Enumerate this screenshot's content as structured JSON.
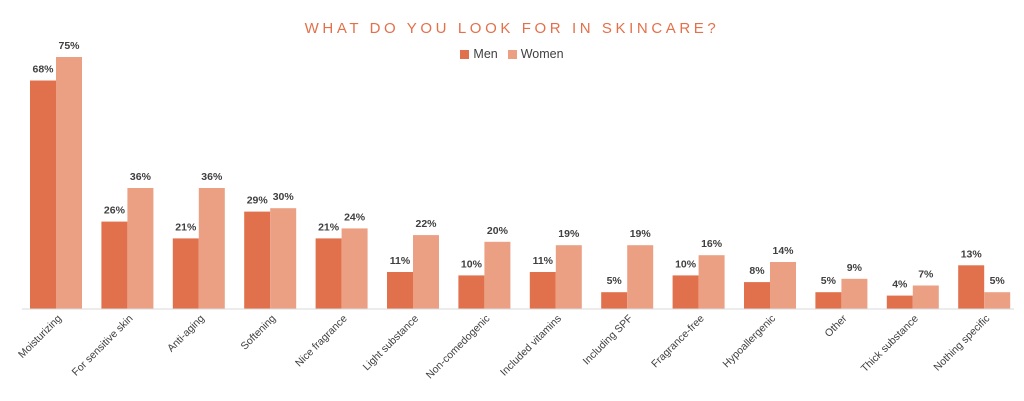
{
  "chart_data": {
    "type": "bar",
    "title": "WHAT DO YOU LOOK FOR IN SKINCARE?",
    "xlabel": "",
    "ylabel": "",
    "ylim": [
      0,
      80
    ],
    "grid": false,
    "legend_position": "top-center",
    "categories": [
      "Moisturizing",
      "For sensitive skin",
      "Anti-aging",
      "Softening",
      "Nice fragrance",
      "Light substance",
      "Non-comedogenic",
      "Included vitamins",
      "Including SPF",
      "Fragrance-free",
      "Hypoallergenic",
      "Other",
      "Thick substance",
      "Nothing specific"
    ],
    "series": [
      {
        "name": "Men",
        "color": "#E0714C",
        "values": [
          68,
          26,
          21,
          29,
          21,
          11,
          10,
          11,
          5,
          10,
          8,
          5,
          4,
          13
        ]
      },
      {
        "name": "Women",
        "color": "#EBA084",
        "values": [
          75,
          36,
          36,
          30,
          24,
          22,
          20,
          19,
          19,
          16,
          14,
          9,
          7,
          5
        ]
      }
    ],
    "value_format": "%"
  },
  "colors": {
    "title": "#E3704A",
    "axis": "#D9D9D9",
    "text": "#404040"
  }
}
